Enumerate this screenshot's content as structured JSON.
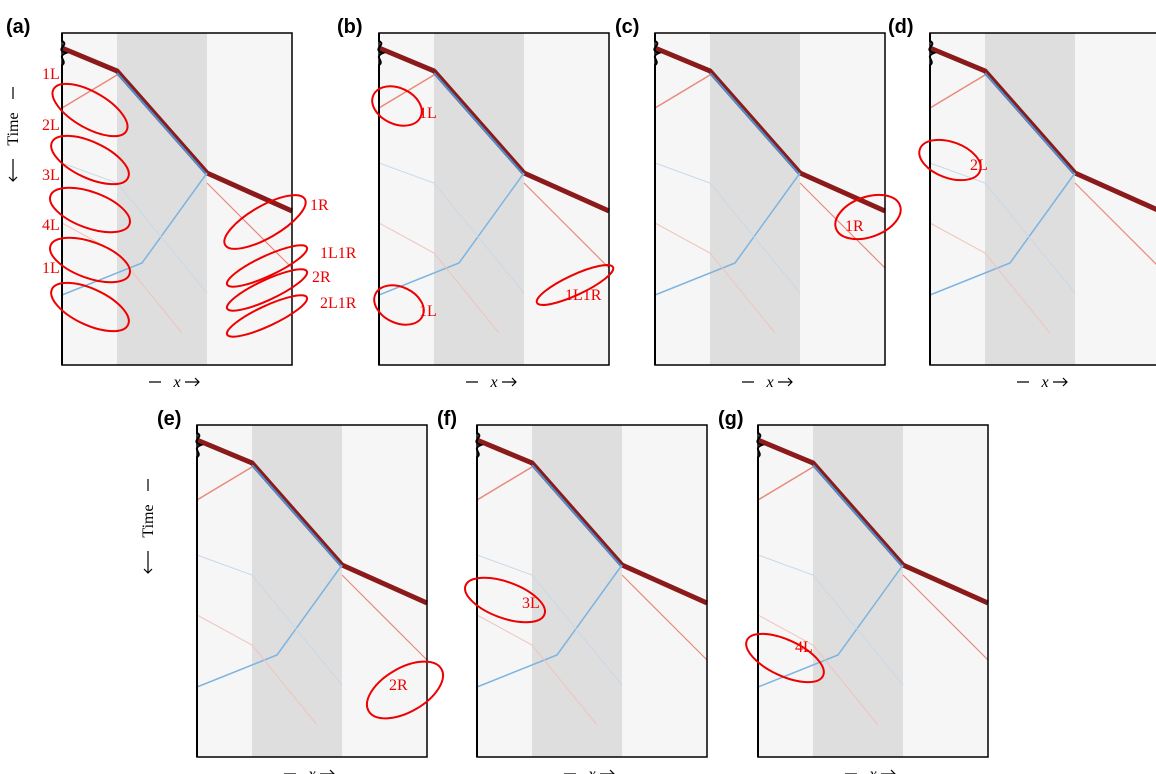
{
  "panels": [
    {
      "label": "(a)",
      "y_label": "Time",
      "x_label": "x",
      "annotations": [
        "1L",
        "2L",
        "3L",
        "4L",
        "1L",
        "1R",
        "1L1R",
        "2R",
        "2L1R"
      ]
    },
    {
      "label": "(b)",
      "x_label": "x",
      "annotations": [
        "1L",
        "1L",
        "1L1R"
      ]
    },
    {
      "label": "(c)",
      "x_label": "x",
      "annotations": [
        "1R"
      ]
    },
    {
      "label": "(d)",
      "x_label": "x",
      "annotations": [
        "2L"
      ]
    },
    {
      "label": "(e)",
      "y_label": "Time",
      "x_label": "x",
      "annotations": [
        "2R"
      ]
    },
    {
      "label": "(f)",
      "x_label": "x",
      "annotations": [
        "3L"
      ]
    },
    {
      "label": "(g)",
      "x_label": "x",
      "annotations": [
        "4L"
      ]
    }
  ]
}
